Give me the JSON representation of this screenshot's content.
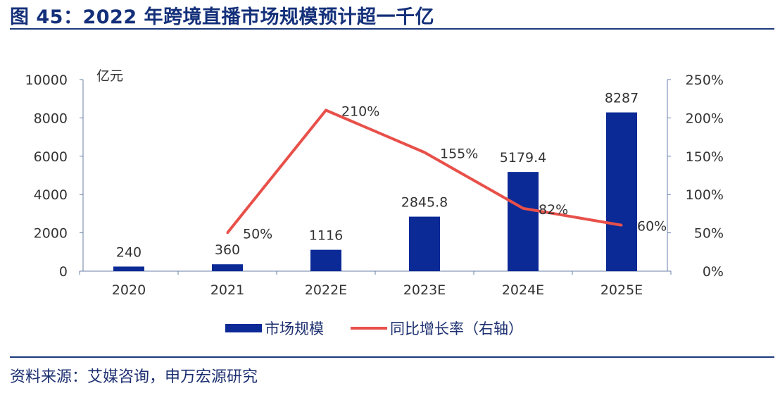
{
  "title": "图 45：2022 年跨境直播市场规模预计超一千亿",
  "source": "资料来源：艾媒咨询，申万宏源研究",
  "chart_data": {
    "type": "bar+line",
    "categories": [
      "2020",
      "2021",
      "2022E",
      "2023E",
      "2024E",
      "2025E"
    ],
    "left_unit": "亿元",
    "ylim_left": [
      0,
      10000
    ],
    "yticks_left": [
      "0",
      "2000",
      "4000",
      "6000",
      "8000",
      "10000"
    ],
    "ylim_right": [
      0,
      250
    ],
    "yticks_right": [
      "0%",
      "50%",
      "100%",
      "150%",
      "200%",
      "250%"
    ],
    "grid": false,
    "legend_position": "bottom",
    "series": [
      {
        "name": "市场规模",
        "type": "bar",
        "axis": "left",
        "color": "#0b2a96",
        "values": [
          240,
          360,
          1116,
          2845.8,
          5179.4,
          8287
        ],
        "labels": [
          "240",
          "360",
          "1116",
          "2845.8",
          "5179.4",
          "8287"
        ]
      },
      {
        "name": "同比增长率（右轴）",
        "type": "line",
        "axis": "right",
        "color": "#e8504a",
        "values": [
          null,
          50,
          210,
          155,
          82,
          60
        ],
        "labels": [
          "",
          "50%",
          "210%",
          "155%",
          "82%",
          "60%"
        ]
      }
    ]
  }
}
